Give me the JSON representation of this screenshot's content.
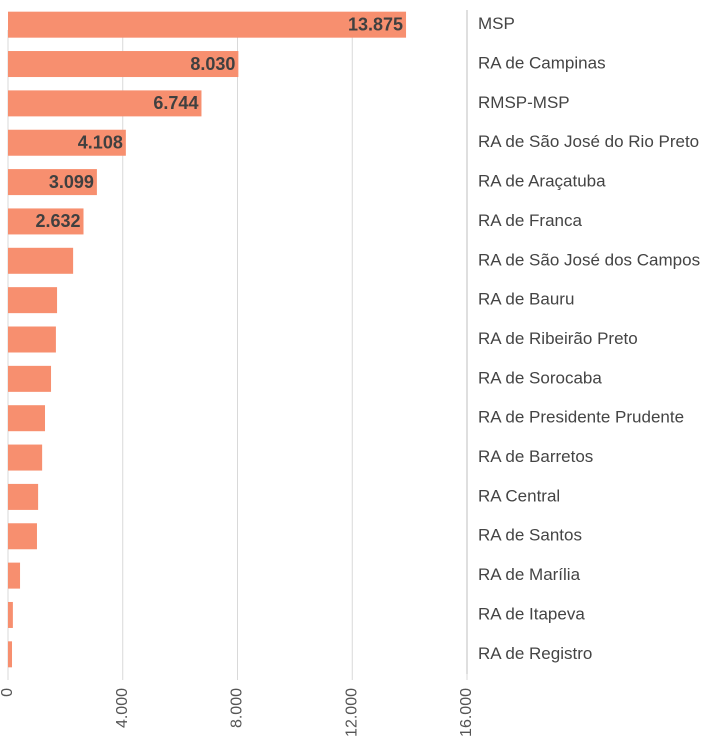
{
  "chart_data": {
    "type": "bar",
    "orientation": "horizontal",
    "categories": [
      "MSP",
      "RA de Campinas",
      "RMSP-MSP",
      "RA de São José do Rio Preto",
      "RA de Araçatuba",
      "RA de Franca",
      "RA de São José dos Campos",
      "RA de Bauru",
      "RA de Ribeirão Preto",
      "RA de Sorocaba",
      "RA de Presidente Prudente",
      "RA de Barretos",
      "RA Central",
      "RA de Santos",
      "RA de Marília",
      "RA de Itapeva",
      "RA de Registro"
    ],
    "values": [
      13875,
      8030,
      6744,
      4108,
      3099,
      2632,
      2270,
      1710,
      1670,
      1500,
      1290,
      1190,
      1050,
      1010,
      420,
      170,
      140
    ],
    "value_labels": [
      "13.875",
      "8.030",
      "6.744",
      "4.108",
      "3.099",
      "2.632",
      null,
      null,
      null,
      null,
      null,
      null,
      null,
      null,
      null,
      null,
      null
    ],
    "color": "#f78f6f",
    "xlim": [
      0,
      16000
    ],
    "xticks": [
      0,
      {
        "value": 4000,
        "label": "4.000"
      },
      {
        "value": 8000,
        "label": "8.000"
      },
      {
        "value": 12000,
        "label": "12.000"
      },
      {
        "value": 16000,
        "label": "16.000"
      }
    ],
    "grid": true
  }
}
